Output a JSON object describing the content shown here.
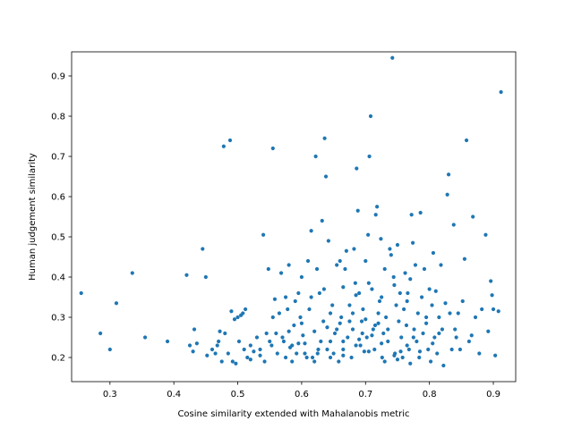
{
  "chart_data": {
    "type": "scatter",
    "title": "",
    "xlabel": "Cosine similarity extended with Mahalanobis metric",
    "ylabel": "Human judgement similarity",
    "xlim": [
      0.24,
      0.935
    ],
    "ylim": [
      0.14,
      0.96
    ],
    "xticks": [
      0.3,
      0.4,
      0.5,
      0.6,
      0.7,
      0.8,
      0.9
    ],
    "yticks": [
      0.2,
      0.3,
      0.4,
      0.5,
      0.6,
      0.7,
      0.8,
      0.9
    ],
    "grid": false,
    "color": "#1f77b4",
    "series": [
      {
        "points": [
          [
            0.255,
            0.36
          ],
          [
            0.285,
            0.26
          ],
          [
            0.3,
            0.22
          ],
          [
            0.31,
            0.335
          ],
          [
            0.335,
            0.41
          ],
          [
            0.355,
            0.25
          ],
          [
            0.39,
            0.24
          ],
          [
            0.42,
            0.405
          ],
          [
            0.425,
            0.23
          ],
          [
            0.43,
            0.215
          ],
          [
            0.432,
            0.27
          ],
          [
            0.436,
            0.235
          ],
          [
            0.445,
            0.47
          ],
          [
            0.45,
            0.4
          ],
          [
            0.452,
            0.205
          ],
          [
            0.46,
            0.22
          ],
          [
            0.465,
            0.21
          ],
          [
            0.468,
            0.23
          ],
          [
            0.47,
            0.24
          ],
          [
            0.472,
            0.265
          ],
          [
            0.475,
            0.19
          ],
          [
            0.478,
            0.725
          ],
          [
            0.48,
            0.26
          ],
          [
            0.485,
            0.21
          ],
          [
            0.488,
            0.74
          ],
          [
            0.49,
            0.315
          ],
          [
            0.492,
            0.19
          ],
          [
            0.495,
            0.295
          ],
          [
            0.497,
            0.185
          ],
          [
            0.5,
            0.3
          ],
          [
            0.502,
            0.24
          ],
          [
            0.505,
            0.305
          ],
          [
            0.508,
            0.31
          ],
          [
            0.51,
            0.22
          ],
          [
            0.512,
            0.32
          ],
          [
            0.515,
            0.2
          ],
          [
            0.52,
            0.23
          ],
          [
            0.525,
            0.215
          ],
          [
            0.53,
            0.25
          ],
          [
            0.535,
            0.205
          ],
          [
            0.54,
            0.505
          ],
          [
            0.542,
            0.19
          ],
          [
            0.545,
            0.26
          ],
          [
            0.548,
            0.42
          ],
          [
            0.55,
            0.24
          ],
          [
            0.553,
            0.23
          ],
          [
            0.555,
            0.72
          ],
          [
            0.558,
            0.345
          ],
          [
            0.56,
            0.26
          ],
          [
            0.562,
            0.21
          ],
          [
            0.565,
            0.31
          ],
          [
            0.568,
            0.41
          ],
          [
            0.57,
            0.25
          ],
          [
            0.572,
            0.24
          ],
          [
            0.575,
            0.2
          ],
          [
            0.578,
            0.32
          ],
          [
            0.58,
            0.43
          ],
          [
            0.582,
            0.225
          ],
          [
            0.585,
            0.19
          ],
          [
            0.588,
            0.28
          ],
          [
            0.59,
            0.34
          ],
          [
            0.592,
            0.21
          ],
          [
            0.595,
            0.235
          ],
          [
            0.598,
            0.3
          ],
          [
            0.6,
            0.4
          ],
          [
            0.602,
            0.255
          ],
          [
            0.605,
            0.21
          ],
          [
            0.608,
            0.2
          ],
          [
            0.61,
            0.44
          ],
          [
            0.612,
            0.32
          ],
          [
            0.615,
            0.515
          ],
          [
            0.617,
            0.2
          ],
          [
            0.62,
            0.265
          ],
          [
            0.622,
            0.7
          ],
          [
            0.624,
            0.42
          ],
          [
            0.626,
            0.22
          ],
          [
            0.628,
            0.36
          ],
          [
            0.63,
            0.24
          ],
          [
            0.632,
            0.54
          ],
          [
            0.634,
            0.29
          ],
          [
            0.636,
            0.745
          ],
          [
            0.638,
            0.65
          ],
          [
            0.64,
            0.22
          ],
          [
            0.642,
            0.49
          ],
          [
            0.645,
            0.31
          ],
          [
            0.648,
            0.33
          ],
          [
            0.65,
            0.21
          ],
          [
            0.652,
            0.26
          ],
          [
            0.655,
            0.43
          ],
          [
            0.658,
            0.19
          ],
          [
            0.66,
            0.44
          ],
          [
            0.662,
            0.3
          ],
          [
            0.665,
            0.22
          ],
          [
            0.668,
            0.42
          ],
          [
            0.67,
            0.465
          ],
          [
            0.672,
            0.25
          ],
          [
            0.675,
            0.33
          ],
          [
            0.678,
            0.2
          ],
          [
            0.68,
            0.27
          ],
          [
            0.682,
            0.47
          ],
          [
            0.684,
            0.385
          ],
          [
            0.686,
            0.67
          ],
          [
            0.688,
            0.565
          ],
          [
            0.69,
            0.36
          ],
          [
            0.692,
            0.23
          ],
          [
            0.694,
            0.29
          ],
          [
            0.696,
            0.32
          ],
          [
            0.698,
            0.215
          ],
          [
            0.7,
            0.44
          ],
          [
            0.702,
            0.25
          ],
          [
            0.704,
            0.505
          ],
          [
            0.706,
            0.7
          ],
          [
            0.708,
            0.8
          ],
          [
            0.71,
            0.37
          ],
          [
            0.712,
            0.27
          ],
          [
            0.714,
            0.22
          ],
          [
            0.716,
            0.555
          ],
          [
            0.718,
            0.575
          ],
          [
            0.72,
            0.31
          ],
          [
            0.722,
            0.34
          ],
          [
            0.724,
            0.495
          ],
          [
            0.726,
            0.2
          ],
          [
            0.728,
            0.26
          ],
          [
            0.73,
            0.42
          ],
          [
            0.732,
            0.3
          ],
          [
            0.735,
            0.24
          ],
          [
            0.738,
            0.47
          ],
          [
            0.74,
            0.455
          ],
          [
            0.742,
            0.945
          ],
          [
            0.744,
            0.4
          ],
          [
            0.746,
            0.21
          ],
          [
            0.748,
            0.33
          ],
          [
            0.75,
            0.48
          ],
          [
            0.752,
            0.29
          ],
          [
            0.754,
            0.36
          ],
          [
            0.756,
            0.25
          ],
          [
            0.758,
            0.2
          ],
          [
            0.76,
            0.32
          ],
          [
            0.762,
            0.41
          ],
          [
            0.764,
            0.28
          ],
          [
            0.766,
            0.36
          ],
          [
            0.768,
            0.22
          ],
          [
            0.77,
            0.395
          ],
          [
            0.772,
            0.555
          ],
          [
            0.774,
            0.485
          ],
          [
            0.776,
            0.27
          ],
          [
            0.778,
            0.43
          ],
          [
            0.78,
            0.24
          ],
          [
            0.782,
            0.31
          ],
          [
            0.784,
            0.2
          ],
          [
            0.786,
            0.56
          ],
          [
            0.788,
            0.35
          ],
          [
            0.79,
            0.26
          ],
          [
            0.792,
            0.42
          ],
          [
            0.795,
            0.3
          ],
          [
            0.798,
            0.22
          ],
          [
            0.8,
            0.37
          ],
          [
            0.802,
            0.19
          ],
          [
            0.804,
            0.33
          ],
          [
            0.806,
            0.46
          ],
          [
            0.808,
            0.25
          ],
          [
            0.81,
            0.365
          ],
          [
            0.812,
            0.21
          ],
          [
            0.815,
            0.3
          ],
          [
            0.818,
            0.43
          ],
          [
            0.82,
            0.27
          ],
          [
            0.822,
            0.18
          ],
          [
            0.825,
            0.335
          ],
          [
            0.828,
            0.605
          ],
          [
            0.83,
            0.655
          ],
          [
            0.832,
            0.31
          ],
          [
            0.835,
            0.22
          ],
          [
            0.838,
            0.53
          ],
          [
            0.84,
            0.27
          ],
          [
            0.842,
            0.25
          ],
          [
            0.845,
            0.31
          ],
          [
            0.848,
            0.22
          ],
          [
            0.852,
            0.34
          ],
          [
            0.855,
            0.445
          ],
          [
            0.858,
            0.74
          ],
          [
            0.862,
            0.24
          ],
          [
            0.866,
            0.255
          ],
          [
            0.868,
            0.55
          ],
          [
            0.872,
            0.3
          ],
          [
            0.878,
            0.21
          ],
          [
            0.882,
            0.32
          ],
          [
            0.888,
            0.505
          ],
          [
            0.892,
            0.265
          ],
          [
            0.896,
            0.39
          ],
          [
            0.898,
            0.355
          ],
          [
            0.9,
            0.32
          ],
          [
            0.903,
            0.205
          ],
          [
            0.908,
            0.315
          ],
          [
            0.912,
            0.86
          ],
          [
            0.52,
            0.195
          ],
          [
            0.535,
            0.22
          ],
          [
            0.585,
            0.23
          ],
          [
            0.605,
            0.235
          ],
          [
            0.625,
            0.21
          ],
          [
            0.645,
            0.24
          ],
          [
            0.665,
            0.205
          ],
          [
            0.685,
            0.23
          ],
          [
            0.705,
            0.215
          ],
          [
            0.725,
            0.235
          ],
          [
            0.745,
            0.205
          ],
          [
            0.765,
            0.23
          ],
          [
            0.785,
            0.215
          ],
          [
            0.805,
            0.235
          ],
          [
            0.645,
            0.2
          ],
          [
            0.655,
            0.27
          ],
          [
            0.675,
            0.29
          ],
          [
            0.695,
            0.26
          ],
          [
            0.715,
            0.28
          ],
          [
            0.735,
            0.27
          ],
          [
            0.755,
            0.215
          ],
          [
            0.775,
            0.25
          ],
          [
            0.795,
            0.285
          ],
          [
            0.815,
            0.26
          ],
          [
            0.665,
            0.375
          ],
          [
            0.685,
            0.355
          ],
          [
            0.705,
            0.385
          ],
          [
            0.725,
            0.35
          ],
          [
            0.745,
            0.38
          ],
          [
            0.765,
            0.34
          ],
          [
            0.635,
            0.37
          ],
          [
            0.615,
            0.35
          ],
          [
            0.595,
            0.36
          ],
          [
            0.575,
            0.35
          ],
          [
            0.555,
            0.3
          ],
          [
            0.665,
            0.24
          ],
          [
            0.69,
            0.245
          ],
          [
            0.71,
            0.255
          ],
          [
            0.73,
            0.19
          ],
          [
            0.75,
            0.195
          ],
          [
            0.77,
            0.185
          ],
          [
            0.62,
            0.19
          ],
          [
            0.6,
            0.285
          ],
          [
            0.58,
            0.265
          ],
          [
            0.64,
            0.275
          ],
          [
            0.66,
            0.285
          ],
          [
            0.68,
            0.31
          ],
          [
            0.7,
            0.295
          ],
          [
            0.72,
            0.285
          ]
        ]
      }
    ]
  }
}
